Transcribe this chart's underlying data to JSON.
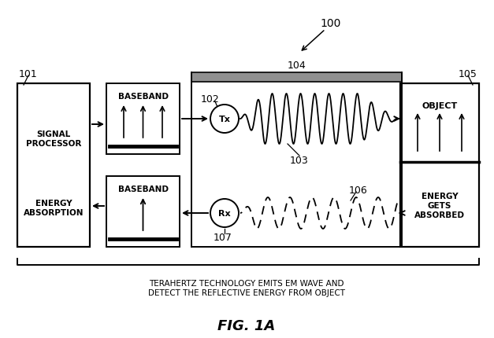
{
  "title": "FIG. 1A",
  "label_100": "100",
  "label_101": "101",
  "label_102": "102",
  "label_103": "103",
  "label_104": "104",
  "label_105": "105",
  "label_106": "106",
  "label_107": "107",
  "text_signal_processor": "SIGNAL\nPROCESSOR",
  "text_energy_absorption": "ENERGY\nABSORPTION",
  "text_baseband_top": "BASEBAND",
  "text_baseband_bot": "BASEBAND",
  "text_object": "OBJECT",
  "text_energy_gets": "ENERGY\nGETS\nABSORBED",
  "text_tx": "Tx",
  "text_rx": "Rx",
  "text_caption": "TERAHERTZ TECHNOLOGY EMITS EM WAVE AND\nDETECT THE REFLECTIVE ENERGY FROM OBJECT",
  "bg_color": "#ffffff",
  "line_color": "#000000"
}
